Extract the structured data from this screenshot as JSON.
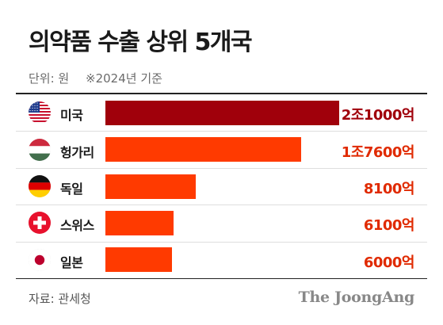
{
  "title": "의약품 수출 상위 5개국",
  "unit_label": "단위: 원",
  "basis_note": "※2024년 기준",
  "source": "자료: 관세청",
  "logo": "The JoongAng",
  "colors": {
    "top_bar": "#a0000b",
    "bar": "#ff3a00",
    "value_text": "#e02a00",
    "top_value_text": "#a0000b"
  },
  "chart_data": {
    "type": "bar",
    "orientation": "horizontal",
    "categories": [
      "미국",
      "헝가리",
      "독일",
      "스위스",
      "일본"
    ],
    "flags": [
      "us-flag-icon",
      "hungary-flag-icon",
      "germany-flag-icon",
      "switzerland-flag-icon",
      "japan-flag-icon"
    ],
    "values": [
      21000,
      17600,
      8100,
      6100,
      6000
    ],
    "value_unit": "억원",
    "value_labels": [
      "2조1000억",
      "1조7600억",
      "8100억",
      "6100억",
      "6000억"
    ],
    "xlim": [
      0,
      21000
    ],
    "title": "의약품 수출 상위 5개국",
    "xlabel": "",
    "ylabel": "",
    "grid": false,
    "legend": "none"
  }
}
